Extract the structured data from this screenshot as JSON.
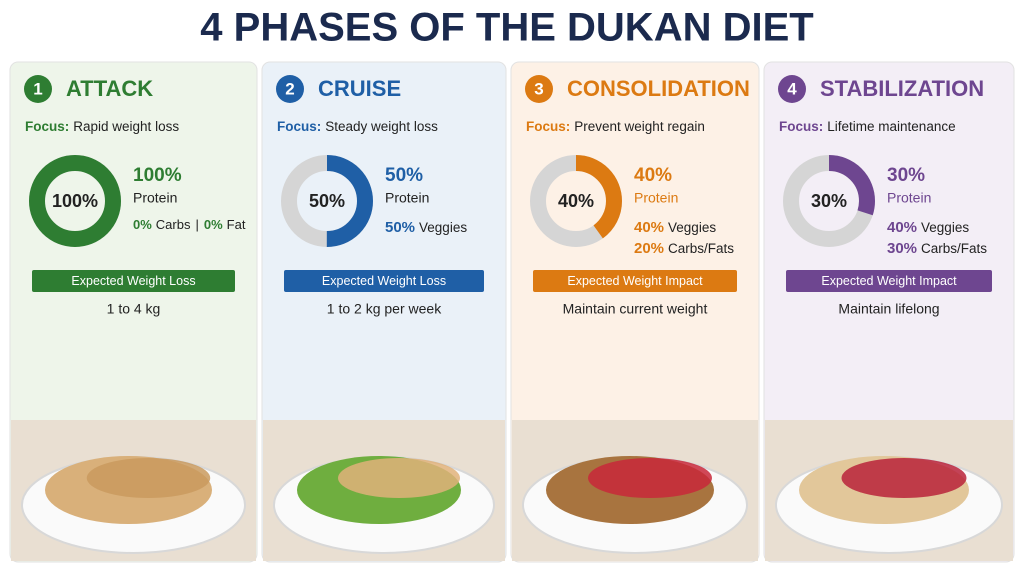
{
  "title": "4 PHASES OF THE DUKAN DIET",
  "phases": [
    {
      "number": "1",
      "name": "ATTACK",
      "color": "#2e7d32",
      "background": "#eef5ea",
      "focus_label": "Focus:",
      "focus": "Rapid weight loss",
      "donut": {
        "value": 100,
        "label": "100%"
      },
      "main_amount": "100%",
      "main_label": "Protein",
      "details": [
        {
          "amount": "0%",
          "label": "Carbs"
        },
        {
          "amount": "0%",
          "label": "Fat"
        }
      ],
      "details_separator": "|",
      "box_label": "Expected Weight Loss",
      "result": "1 to 4 kg"
    },
    {
      "number": "2",
      "name": "CRUISE",
      "color": "#1f5fa6",
      "background": "#eaf1f8",
      "focus_label": "Focus:",
      "focus": "Steady weight loss",
      "donut": {
        "value": 50,
        "label": "50%"
      },
      "main_amount": "50%",
      "main_label": "Protein",
      "details": [
        {
          "amount": "50%",
          "label": "Veggies"
        }
      ],
      "box_label": "Expected Weight Loss",
      "result": "1 to 2 kg per week"
    },
    {
      "number": "3",
      "name": "CONSOLIDATION",
      "color": "#dc7a12",
      "background": "#fdf1e6",
      "focus_label": "Focus:",
      "focus": "Prevent weight regain",
      "donut": {
        "value": 40,
        "label": "40%"
      },
      "main_amount": "40%",
      "main_label": "Protein",
      "details": [
        {
          "amount": "40%",
          "label": "Veggies"
        },
        {
          "amount": "20%",
          "label": "Carbs/Fats"
        }
      ],
      "box_label": "Expected Weight Impact",
      "result": "Maintain current weight"
    },
    {
      "number": "4",
      "name": "STABILIZATION",
      "color": "#6e4690",
      "background": "#f3eef6",
      "focus_label": "Focus:",
      "focus": "Lifetime maintenance",
      "donut": {
        "value": 30,
        "label": "30%"
      },
      "main_amount": "30%",
      "main_label": "Protein",
      "details": [
        {
          "amount": "40%",
          "label": "Veggies"
        },
        {
          "amount": "30%",
          "label": "Carbs/Fats"
        }
      ],
      "box_label": "Expected Weight Impact",
      "result": "Maintain lifelong"
    }
  ]
}
